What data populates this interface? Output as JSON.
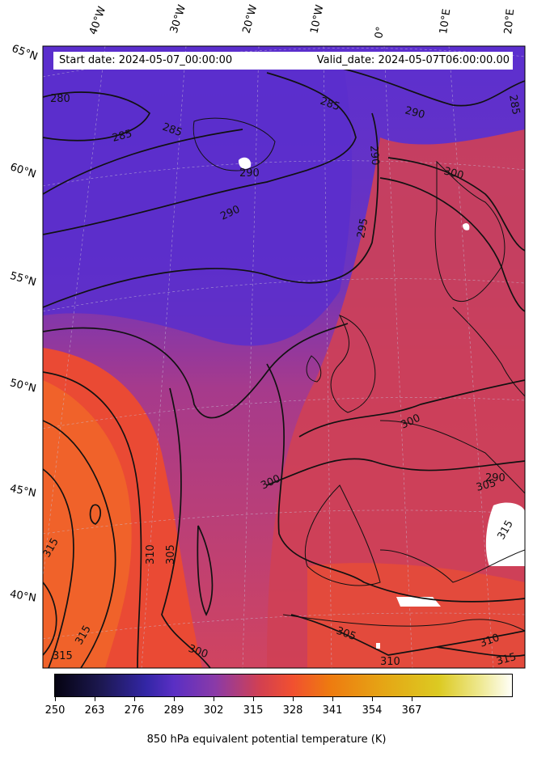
{
  "header": {
    "start_date": "Start date: 2024-05-07_00:00:00",
    "valid_date": "Valid_date: 2024-05-07T06:00:00.00"
  },
  "longitude_labels": [
    "40°W",
    "30°W",
    "20°W",
    "10°W",
    "0°",
    "10°E",
    "20°E"
  ],
  "latitude_labels": [
    "65°N",
    "60°N",
    "55°N",
    "50°N",
    "45°N",
    "40°N"
  ],
  "contour_labels": [
    "280",
    "285",
    "285",
    "285",
    "290",
    "290",
    "290",
    "290",
    "295",
    "300",
    "300",
    "300",
    "300",
    "305",
    "305",
    "305",
    "310",
    "310",
    "310",
    "315",
    "315",
    "315",
    "315",
    "285",
    "290"
  ],
  "colorbar": {
    "ticks": [
      "250",
      "263",
      "276",
      "289",
      "302",
      "315",
      "328",
      "341",
      "354",
      "367"
    ],
    "label": "850 hPa equivalent potential temperature (K)",
    "colors": [
      "#050311",
      "#1c1850",
      "#3326a6",
      "#5a2fc4",
      "#d34050",
      "#ee7a10",
      "#dcca22",
      "#fffff8"
    ]
  }
}
